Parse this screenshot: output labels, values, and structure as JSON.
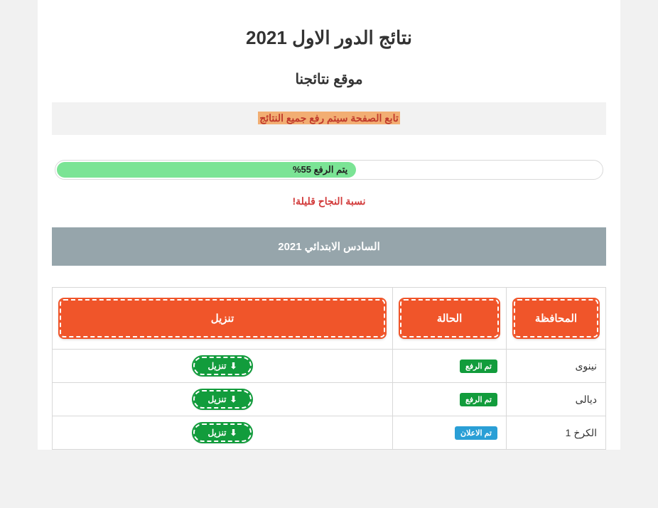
{
  "page": {
    "main_title": "نتائج الدور الاول 2021",
    "sub_title": "موقع نتائجنا",
    "notice": "تابع الصفحة سيتم رفع جميع النتائج",
    "progress_percent": 55,
    "progress_label": "يتم الرفع 55%",
    "warn_text": "نسبة النجاح قليلة!",
    "section_header": "السادس الابتدائي 2021"
  },
  "table": {
    "headers": {
      "governorate": "المحافظة",
      "status": "الحالة",
      "download": "تنزيل"
    },
    "download_btn_label": "تنزيل",
    "status_labels": {
      "uploaded": "تم الرفع",
      "announced": "تم الاعلان"
    },
    "rows": [
      {
        "gov": "نينوى",
        "status": "uploaded"
      },
      {
        "gov": "ديالى",
        "status": "uploaded"
      },
      {
        "gov": "الكرخ 1",
        "status": "announced"
      }
    ]
  },
  "colors": {
    "header_box": "#f0552a",
    "badge_uploaded": "#129c3c",
    "badge_announced": "#2a9fd6",
    "progress_fill": "#7be495",
    "section_bar": "#96a5ab",
    "notice_highlight": "#f2ae73",
    "warn_text": "#d23b3b"
  }
}
